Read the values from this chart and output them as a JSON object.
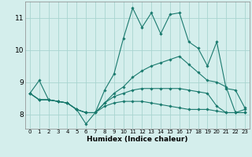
{
  "title": "",
  "xlabel": "Humidex (Indice chaleur)",
  "ylabel": "",
  "background_color": "#d4eeec",
  "grid_color": "#a8d4d0",
  "line_color": "#1a7a6e",
  "x_ticks": [
    0,
    1,
    2,
    3,
    4,
    5,
    6,
    7,
    8,
    9,
    10,
    11,
    12,
    13,
    14,
    15,
    16,
    17,
    18,
    19,
    20,
    21,
    22,
    23
  ],
  "y_ticks": [
    8,
    9,
    10,
    11
  ],
  "xlim": [
    -0.5,
    23.5
  ],
  "ylim": [
    7.55,
    11.5
  ],
  "curves": [
    [
      8.65,
      9.05,
      8.45,
      8.4,
      8.35,
      8.15,
      7.7,
      8.05,
      8.75,
      9.25,
      10.35,
      11.3,
      10.7,
      11.15,
      10.5,
      11.1,
      11.15,
      10.25,
      10.05,
      9.5,
      10.25,
      8.8,
      8.75,
      8.2
    ],
    [
      8.65,
      8.45,
      8.45,
      8.4,
      8.35,
      8.15,
      8.05,
      8.05,
      8.35,
      8.65,
      8.85,
      9.15,
      9.35,
      9.5,
      9.6,
      9.7,
      9.8,
      9.55,
      9.3,
      9.05,
      9.0,
      8.85,
      8.05,
      8.15
    ],
    [
      8.65,
      8.45,
      8.45,
      8.4,
      8.35,
      8.15,
      8.05,
      8.05,
      8.35,
      8.55,
      8.65,
      8.75,
      8.8,
      8.8,
      8.8,
      8.8,
      8.8,
      8.75,
      8.7,
      8.65,
      8.25,
      8.05,
      8.05,
      8.05
    ],
    [
      8.65,
      8.45,
      8.45,
      8.4,
      8.35,
      8.15,
      8.05,
      8.05,
      8.25,
      8.35,
      8.4,
      8.4,
      8.4,
      8.35,
      8.3,
      8.25,
      8.2,
      8.15,
      8.15,
      8.15,
      8.1,
      8.05,
      8.05,
      8.05
    ]
  ]
}
